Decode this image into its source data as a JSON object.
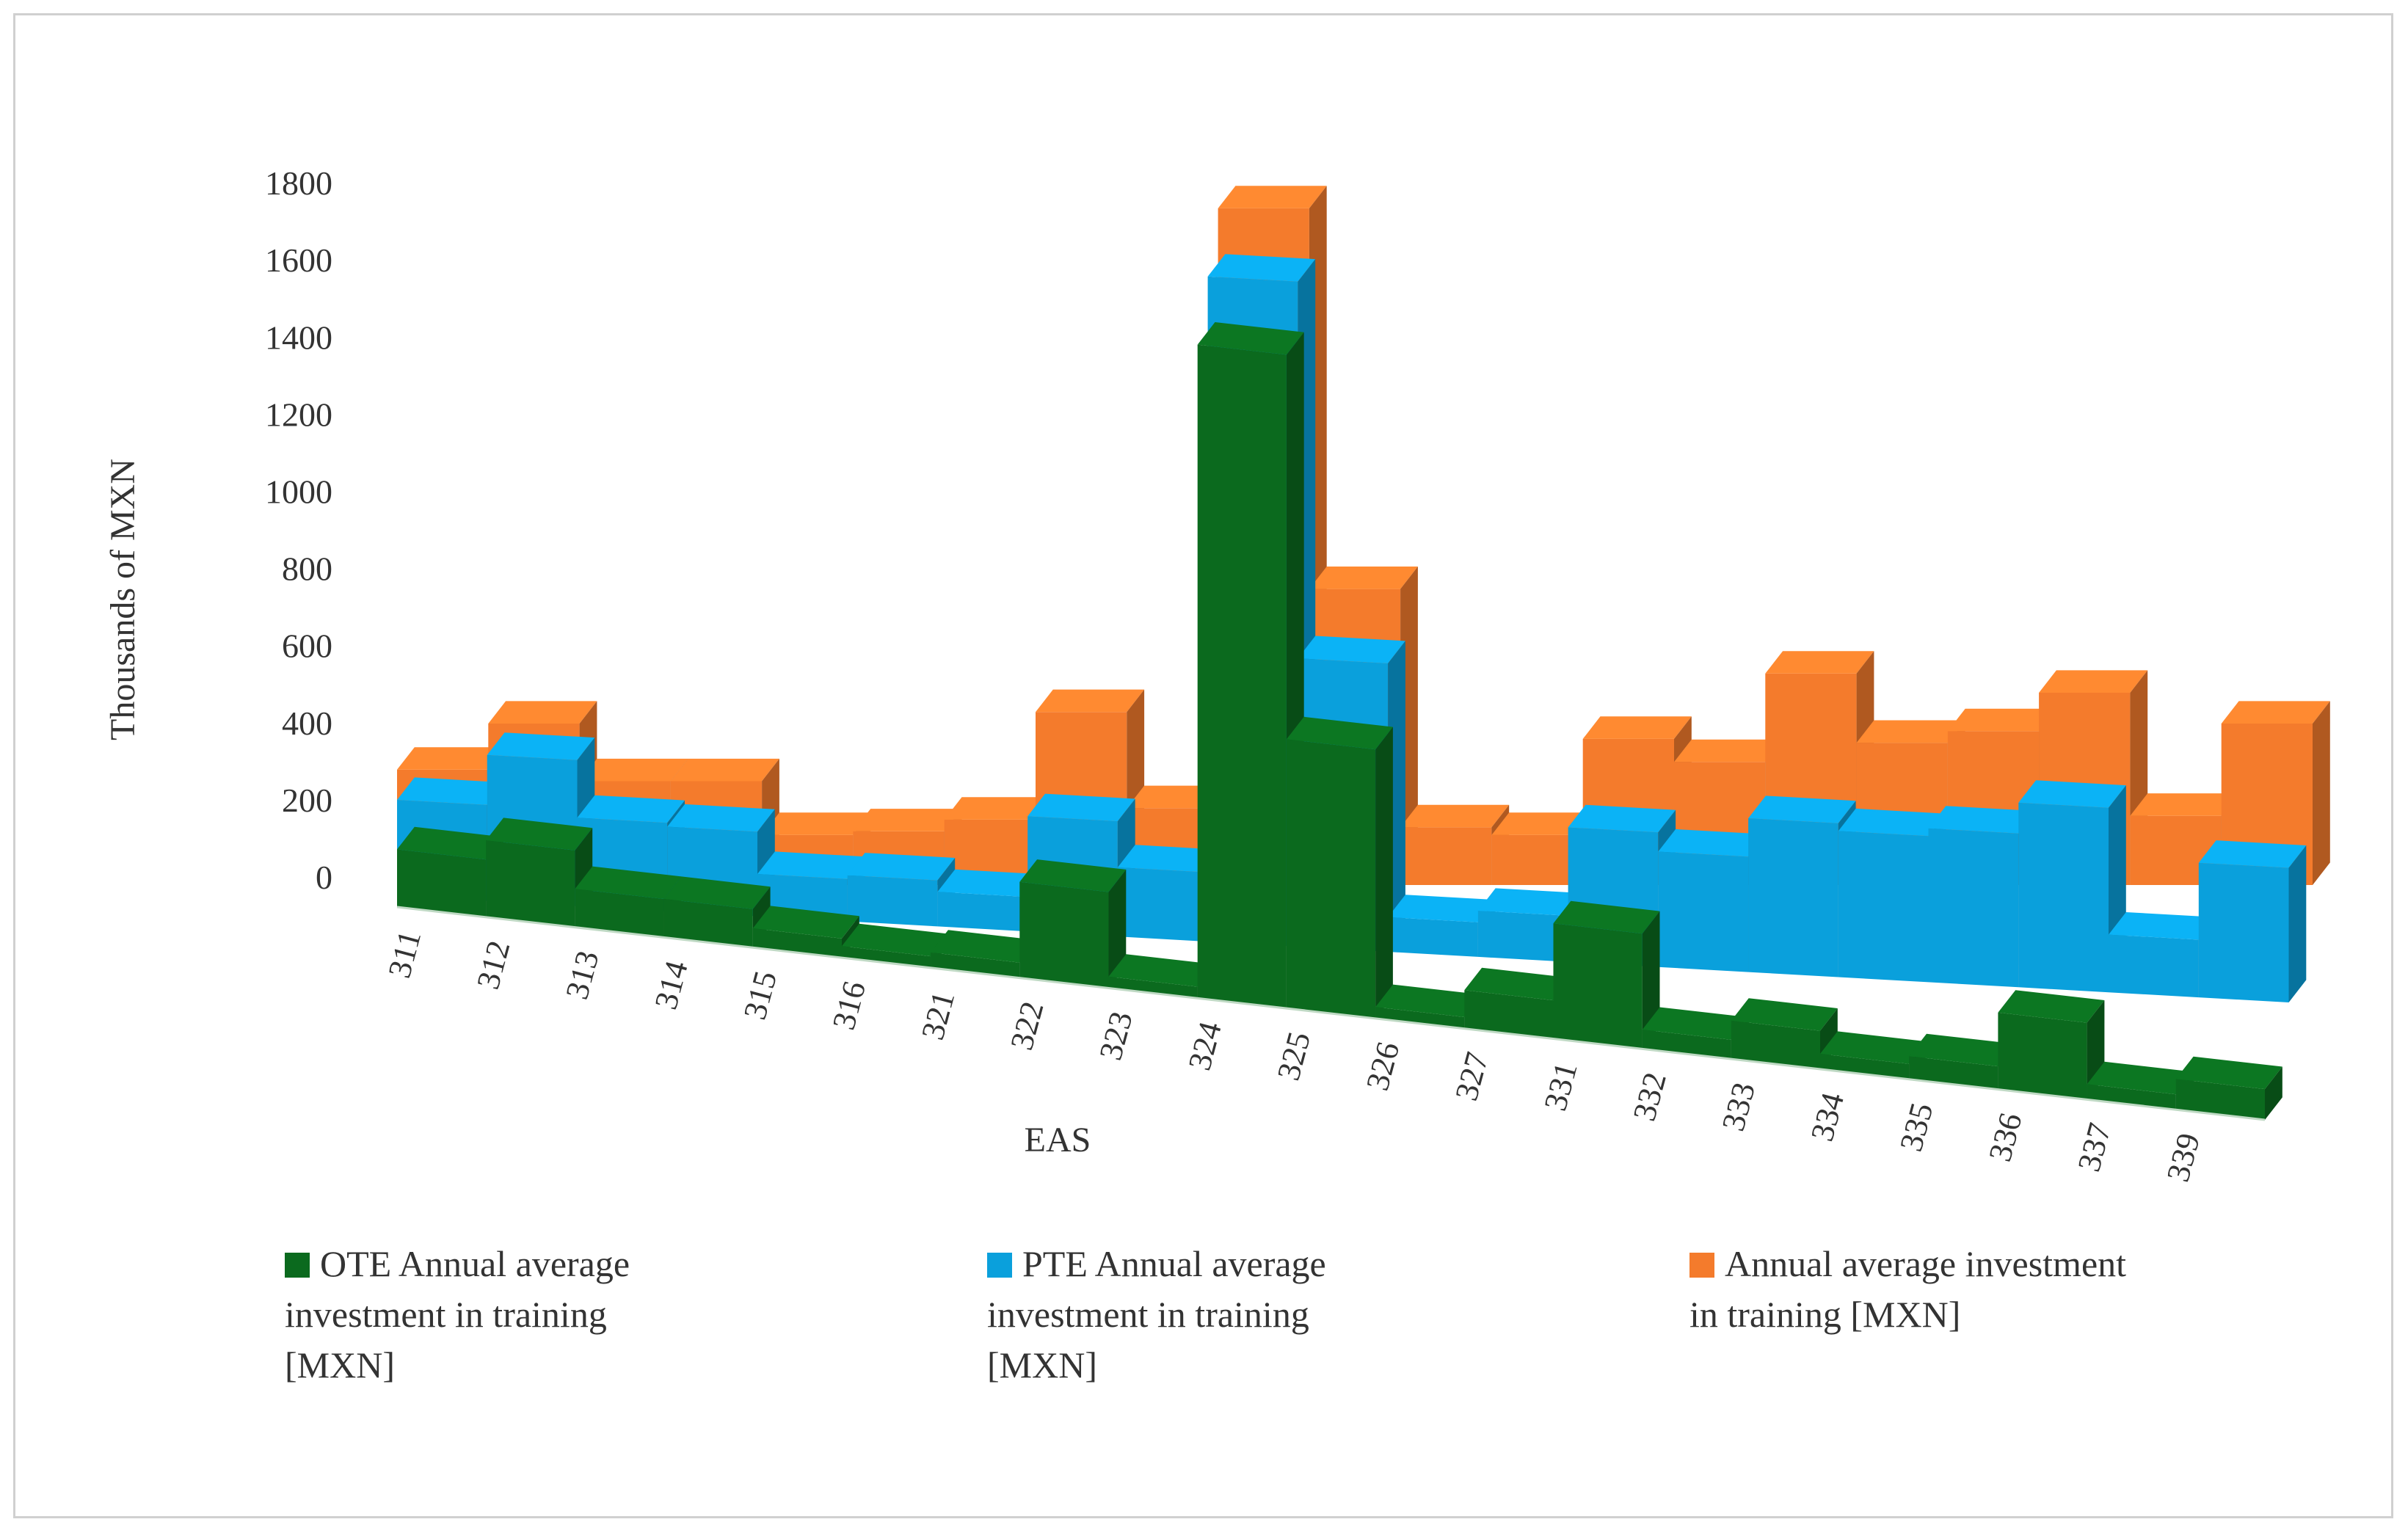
{
  "chart_data": {
    "type": "bar",
    "subtype": "3d-stacked-depth",
    "xlabel": "EAS",
    "ylabel": "Thousands of MXN",
    "ylim": [
      0,
      1800
    ],
    "yticks": [
      0,
      200,
      400,
      600,
      800,
      1000,
      1200,
      1400,
      1600,
      1800
    ],
    "categories": [
      "311",
      "312",
      "313",
      "314",
      "315",
      "316",
      "321",
      "322",
      "323",
      "324",
      "325",
      "326",
      "327",
      "331",
      "332",
      "333",
      "334",
      "335",
      "336",
      "337",
      "339"
    ],
    "series": [
      {
        "name": "OTE Annual average investment in training [MXN]",
        "color": "#0b6a1e",
        "values": [
          150,
          200,
          100,
          100,
          50,
          30,
          40,
          250,
          30,
          1700,
          700,
          30,
          100,
          300,
          50,
          100,
          40,
          60,
          200,
          40,
          80
        ]
      },
      {
        "name": "PTE Annual average investment in training [MXN]",
        "color": "#0aa0dc",
        "values": [
          250,
          380,
          230,
          220,
          110,
          120,
          90,
          300,
          180,
          1730,
          750,
          90,
          120,
          350,
          300,
          400,
          380,
          400,
          480,
          150,
          350
        ]
      },
      {
        "name": "Annual average investment in training [MXN]",
        "color": "#f47b2c",
        "values": [
          300,
          420,
          270,
          270,
          130,
          140,
          170,
          450,
          200,
          1760,
          770,
          150,
          130,
          380,
          320,
          550,
          370,
          400,
          500,
          180,
          420
        ]
      }
    ]
  }
}
